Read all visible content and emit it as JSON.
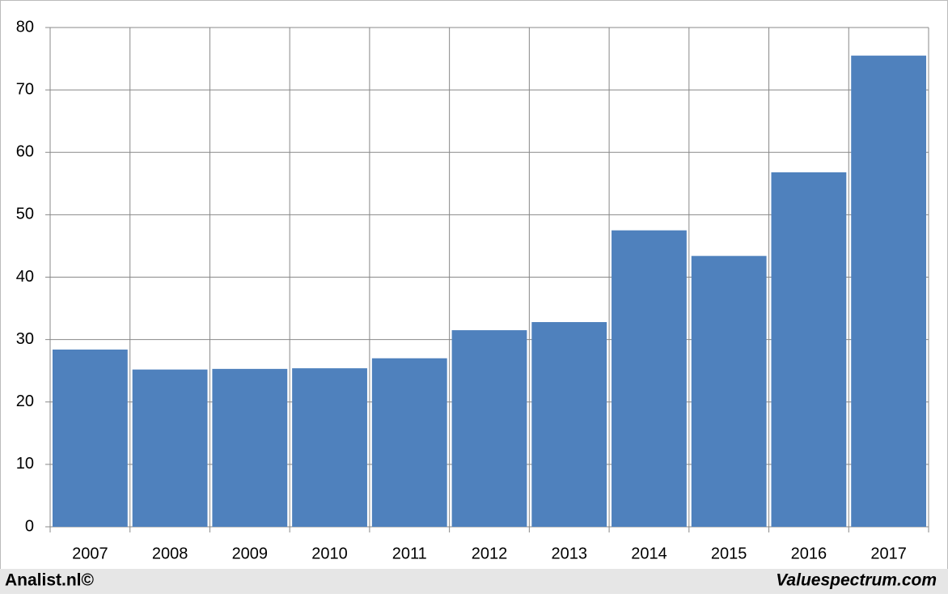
{
  "chart_data": {
    "type": "bar",
    "categories": [
      "2007",
      "2008",
      "2009",
      "2010",
      "2011",
      "2012",
      "2013",
      "2014",
      "2015",
      "2016",
      "2017"
    ],
    "values": [
      28.4,
      25.2,
      25.3,
      25.4,
      27.0,
      31.5,
      32.8,
      47.5,
      43.4,
      56.8,
      75.5
    ],
    "color": "#4f81bd",
    "ylim": [
      0,
      80
    ],
    "yticks": [
      0,
      10,
      20,
      30,
      40,
      50,
      60,
      70,
      80
    ],
    "grid": true,
    "footer_left": "Analist.nl©",
    "footer_right": "Valuespectrum.com"
  }
}
